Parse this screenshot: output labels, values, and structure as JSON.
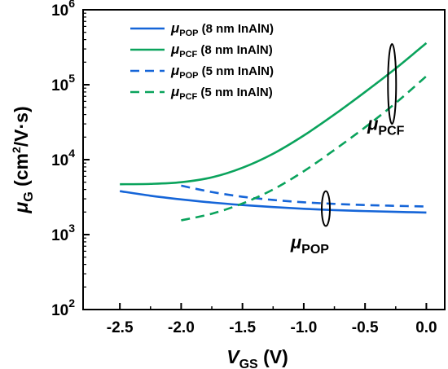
{
  "chart_data": {
    "type": "line",
    "xlabel": {
      "main": "V",
      "sub": "GS",
      "unit": " (V)"
    },
    "ylabel": {
      "main": "μ",
      "sub": "G",
      "unit_pre": " (cm",
      "sup": "2",
      "unit_post": "/V·s)"
    },
    "xlim": [
      -2.8,
      0.15
    ],
    "ylim": [
      100,
      1000000
    ],
    "yscale": "log",
    "x_ticks": [
      -2.5,
      -2.0,
      -1.5,
      -1.0,
      -0.5,
      0.0
    ],
    "x_tick_labels": [
      "-2.5",
      "-2.0",
      "-1.5",
      "-1.0",
      "-0.5",
      "0.0"
    ],
    "y_ticks": [
      100,
      1000,
      10000,
      100000,
      1000000
    ],
    "y_tick_labels": [
      {
        "base": "10",
        "exp": "2"
      },
      {
        "base": "10",
        "exp": "3"
      },
      {
        "base": "10",
        "exp": "4"
      },
      {
        "base": "10",
        "exp": "5"
      },
      {
        "base": "10",
        "exp": "6"
      }
    ],
    "grid": false,
    "legend_position": "top-left",
    "series": [
      {
        "label_main": "μ",
        "label_sub": "POP",
        "label_rest": " (8 nm InAlN)",
        "color": "#1565d8",
        "dash": "solid",
        "x": [
          -2.5,
          -2.25,
          -2.0,
          -1.75,
          -1.5,
          -1.25,
          -1.0,
          -0.75,
          -0.5,
          -0.25,
          0.0
        ],
        "y": [
          3800,
          3300,
          2950,
          2680,
          2480,
          2330,
          2210,
          2120,
          2060,
          2010,
          1970
        ]
      },
      {
        "label_main": "μ",
        "label_sub": "PCF",
        "label_rest": " (8 nm InAlN)",
        "color": "#0aa35c",
        "dash": "solid",
        "x": [
          -2.5,
          -2.25,
          -2.0,
          -1.75,
          -1.5,
          -1.25,
          -1.0,
          -0.75,
          -0.5,
          -0.25,
          0.0
        ],
        "y": [
          4700,
          4750,
          5000,
          5800,
          7800,
          12000,
          21000,
          40000,
          80000,
          165000,
          360000
        ]
      },
      {
        "label_main": "μ",
        "label_sub": "POP",
        "label_rest": " (5 nm InAlN)",
        "color": "#1565d8",
        "dash": "dashed",
        "x": [
          -2.0,
          -1.75,
          -1.5,
          -1.25,
          -1.0,
          -0.75,
          -0.5,
          -0.25,
          0.0
        ],
        "y": [
          4500,
          3700,
          3200,
          2900,
          2700,
          2570,
          2480,
          2420,
          2370
        ]
      },
      {
        "label_main": "μ",
        "label_sub": "PCF",
        "label_rest": " (5 nm InAlN)",
        "color": "#0aa35c",
        "dash": "dashed",
        "x": [
          -2.0,
          -1.75,
          -1.5,
          -1.25,
          -1.0,
          -0.75,
          -0.5,
          -0.25,
          0.0
        ],
        "y": [
          1550,
          1900,
          2600,
          4000,
          7000,
          13500,
          27000,
          57000,
          130000
        ]
      }
    ],
    "annotations": [
      {
        "main": "μ",
        "sub": "PCF",
        "at": [
          -0.28,
          100000
        ],
        "ellipse_y": [
          30000,
          350000
        ],
        "label_at": [
          -0.33,
          25000
        ]
      },
      {
        "main": "μ",
        "sub": "POP",
        "at": [
          -0.82,
          2100
        ],
        "ellipse_y": [
          1300,
          3800
        ],
        "label_at": [
          -0.95,
          650
        ]
      }
    ]
  }
}
